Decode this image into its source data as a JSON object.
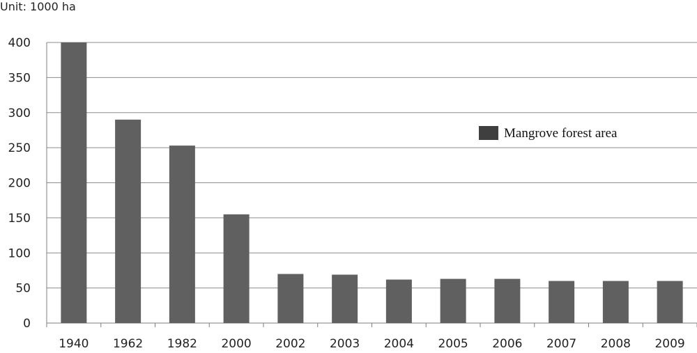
{
  "unit_label": "Unit: 1000 ha",
  "colors": {
    "bar": "#606060",
    "legend_swatch": "#3f3f3f",
    "grid": "#8c8c8c",
    "axis": "#7f7f7f"
  },
  "chart_data": {
    "type": "bar",
    "title": "",
    "xlabel": "",
    "ylabel": "",
    "categories": [
      "1940",
      "1962",
      "1982",
      "2000",
      "2002",
      "2003",
      "2004",
      "2005",
      "2006",
      "2007",
      "2008",
      "2009"
    ],
    "series": [
      {
        "name": "Mangrove forest area",
        "values": [
          400,
          290,
          253,
          155,
          70,
          69,
          62,
          63,
          63,
          60,
          60,
          60
        ]
      }
    ],
    "ylim": [
      0,
      400
    ],
    "yticks": [
      0,
      50,
      100,
      150,
      200,
      250,
      300,
      350,
      400
    ],
    "grid": true,
    "legend_position": "right"
  }
}
